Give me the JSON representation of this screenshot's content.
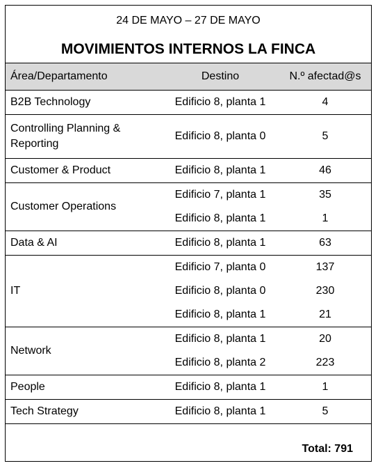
{
  "header": {
    "date_range": "24 DE MAYO  – 27 DE MAYO",
    "title": "MOVIMIENTOS INTERNOS LA FINCA"
  },
  "table": {
    "columns": [
      "Área/Departamento",
      "Destino",
      "N.º afectad@s"
    ],
    "groups": [
      {
        "area": "B2B Technology",
        "rows": [
          {
            "destino": "Edificio 8, planta 1",
            "afectados": "4"
          }
        ]
      },
      {
        "area": "Controlling Planning & Reporting",
        "rows": [
          {
            "destino": "Edificio 8, planta 0",
            "afectados": "5"
          }
        ]
      },
      {
        "area": "Customer & Product",
        "rows": [
          {
            "destino": "Edificio 8, planta 1",
            "afectados": "46"
          }
        ]
      },
      {
        "area": "Customer Operations",
        "rows": [
          {
            "destino": "Edificio 7, planta 1",
            "afectados": "35"
          },
          {
            "destino": "Edificio 8, planta 1",
            "afectados": "1"
          }
        ]
      },
      {
        "area": "Data & AI",
        "rows": [
          {
            "destino": "Edificio 8, planta 1",
            "afectados": "63"
          }
        ]
      },
      {
        "area": "IT",
        "rows": [
          {
            "destino": "Edificio 7, planta 0",
            "afectados": "137"
          },
          {
            "destino": "Edificio 8, planta 0",
            "afectados": "230"
          },
          {
            "destino": "Edificio 8, planta 1",
            "afectados": "21"
          }
        ]
      },
      {
        "area": "Network",
        "rows": [
          {
            "destino": "Edificio 8, planta 1",
            "afectados": "20"
          },
          {
            "destino": "Edificio 8, planta 2",
            "afectados": "223"
          }
        ]
      },
      {
        "area": "People",
        "rows": [
          {
            "destino": "Edificio 8, planta 1",
            "afectados": "1"
          }
        ]
      },
      {
        "area": "Tech Strategy",
        "rows": [
          {
            "destino": "Edificio 8, planta 1",
            "afectados": "5"
          }
        ]
      }
    ],
    "total": "Total: 791"
  }
}
